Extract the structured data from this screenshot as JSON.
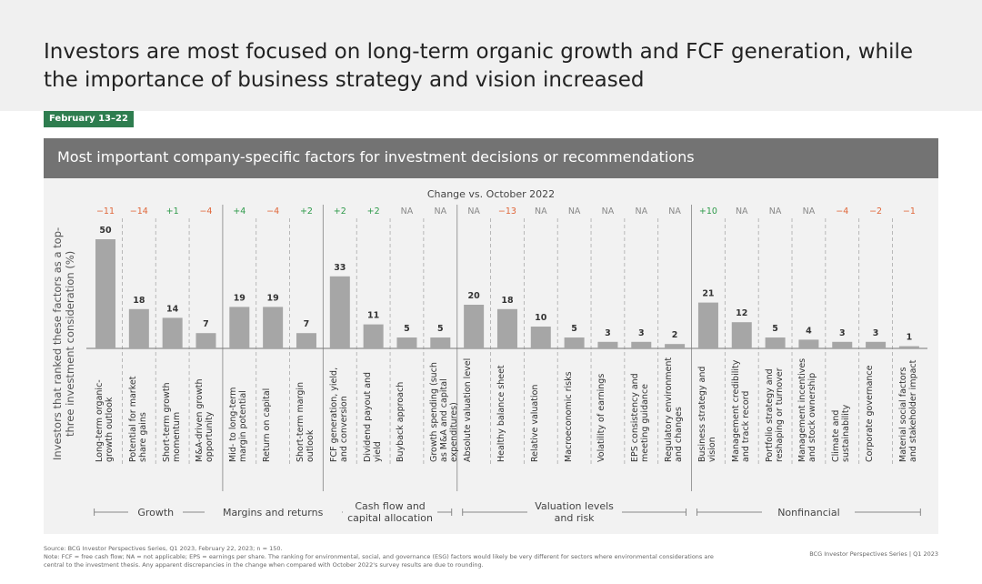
{
  "chart_data": {
    "type": "bar",
    "title": "Investors are most focused on long-term organic growth and FCF generation, while the importance of business strategy and vision increased",
    "date_tag": "February 13–22",
    "subtitle": "Most important company-specific factors for investment decisions or recommendations",
    "y_label": "Investors that ranked these factors as a top-three investment consideration (%)",
    "change_title": "Change vs. October 2022",
    "categories": [
      "Long-term organic-growth outlook",
      "Potential for market share gains",
      "Short-term growth momentum",
      "M&A-driven growth opportunity",
      "Mid- to long-term margin potential",
      "Return on capital",
      "Short-term margin outlook",
      "FCF generation, yield, and conversion",
      "Dividend payout and yield",
      "Buyback approach",
      "Growth spending (such as M&A and capital expenditures)",
      "Absolute valuation level",
      "Healthy balance sheet",
      "Relative valuation",
      "Macroeconomic risks",
      "Volatility of earnings",
      "EPS consistency and meeting guidance",
      "Regulatory environment and changes",
      "Business strategy and vision",
      "Management credibility and track record",
      "Portfolio strategy and reshaping or turnover",
      "Management incentives and stock ownership",
      "Climate and sustainability",
      "Corporate governance",
      "Material social factors and stakeholder impact"
    ],
    "values": [
      50,
      18,
      14,
      7,
      19,
      19,
      7,
      33,
      11,
      5,
      5,
      20,
      18,
      10,
      5,
      3,
      3,
      2,
      21,
      12,
      5,
      4,
      3,
      3,
      1
    ],
    "changes": [
      "−11",
      "−14",
      "+1",
      "−4",
      "+4",
      "−4",
      "+2",
      "+2",
      "+2",
      "NA",
      "NA",
      "NA",
      "−13",
      "NA",
      "NA",
      "NA",
      "NA",
      "NA",
      "+10",
      "NA",
      "NA",
      "NA",
      "−4",
      "−2",
      "−1"
    ],
    "groups": [
      {
        "name": "Growth",
        "start": 0,
        "end": 3
      },
      {
        "name": "Margins and returns",
        "start": 4,
        "end": 6
      },
      {
        "name": "Cash flow and capital allocation",
        "start": 7,
        "end": 10
      },
      {
        "name": "Valuation levels and risk",
        "start": 11,
        "end": 17
      },
      {
        "name": "Nonfinancial",
        "start": 18,
        "end": 24
      }
    ],
    "color": "#a6a6a6",
    "ylim": [
      0,
      50
    ],
    "source": "Source: BCG Investor Perspectives Series, Q1 2023, February 22, 2023; n = 150.",
    "note": "Note: FCF = free cash flow; NA = not applicable; EPS = earnings per share. The ranking for environmental, social, and governance (ESG) factors would likely be very different for sectors where environmental considerations are central to the investment thesis. Any apparent discrepancies in the change when compared with October 2022's survey results are due to rounding.",
    "footer_right": "BCG Investor Perspectives Series | Q1 2023"
  }
}
